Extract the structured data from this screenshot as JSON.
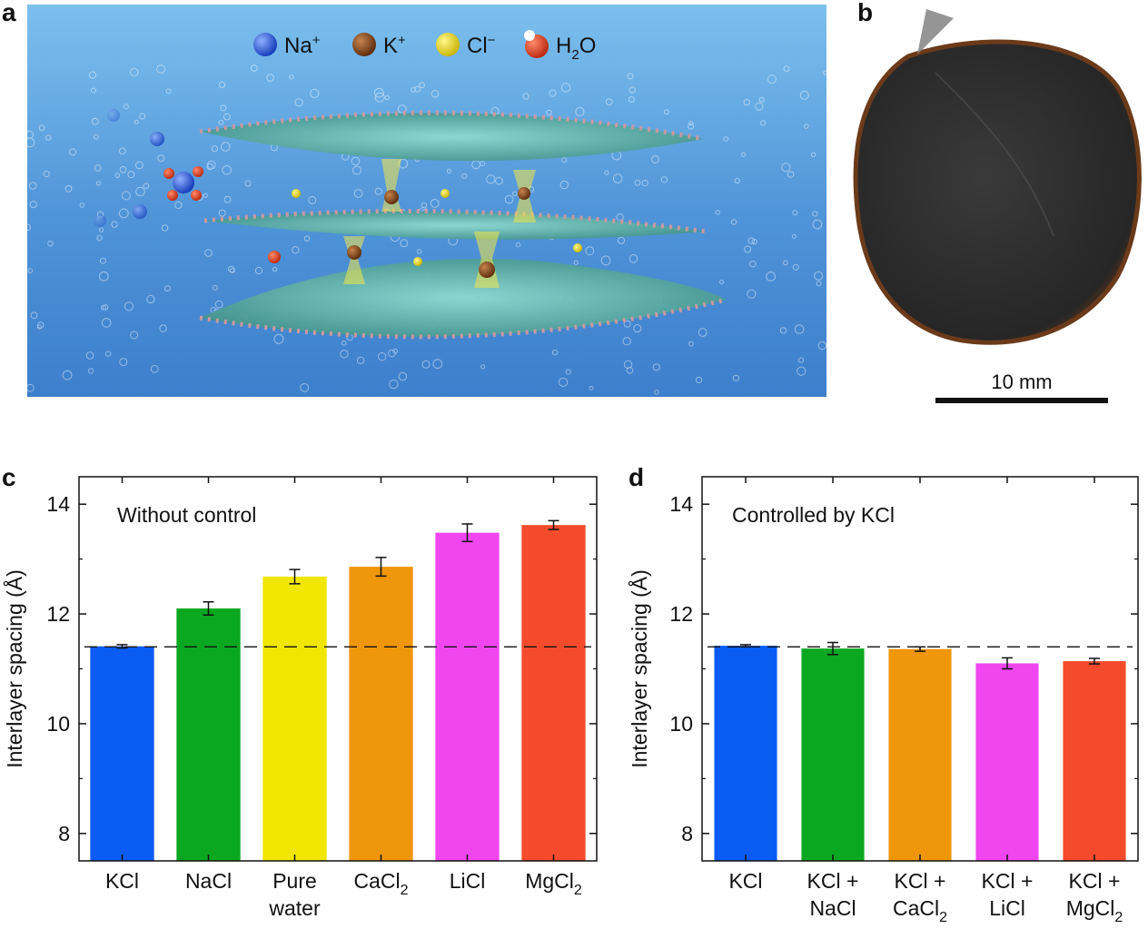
{
  "panel_a": {
    "letter": "a",
    "legend": [
      {
        "symbol": "Na",
        "charge": "+",
        "color": "#1f4fd6"
      },
      {
        "symbol": "K",
        "charge": "+",
        "color": "#7a3b12"
      },
      {
        "symbol": "Cl",
        "charge": "−",
        "color": "#e8d61a"
      },
      {
        "symbol": "H",
        "sub": "2",
        "rest": "O",
        "color": "#d9361c"
      }
    ]
  },
  "panel_b": {
    "letter": "b",
    "scale_label": "10 mm"
  },
  "chart_data": [
    {
      "type": "bar",
      "panel_letter": "c",
      "annotation": "Without control",
      "ylabel": "Interlayer spacing (Å)",
      "ylim": [
        7.5,
        14.5
      ],
      "yticks": [
        8,
        10,
        12,
        14
      ],
      "reference_line": 11.4,
      "categories": [
        {
          "lines": [
            "KCl"
          ]
        },
        {
          "lines": [
            "NaCl"
          ]
        },
        {
          "lines": [
            "Pure",
            "water"
          ]
        },
        {
          "lines": [
            "CaCl|2"
          ]
        },
        {
          "lines": [
            "LiCl"
          ]
        },
        {
          "lines": [
            "MgCl|2"
          ]
        }
      ],
      "values": [
        11.41,
        12.1,
        12.68,
        12.86,
        13.48,
        13.62
      ],
      "errors": [
        0.03,
        0.12,
        0.13,
        0.17,
        0.16,
        0.08
      ],
      "colors": [
        "#0a5cf5",
        "#0aa821",
        "#f0e600",
        "#f0960a",
        "#f046f0",
        "#f54b2d"
      ]
    },
    {
      "type": "bar",
      "panel_letter": "d",
      "annotation": "Controlled by KCl",
      "ylabel": "Interlayer spacing (Å)",
      "ylim": [
        7.5,
        14.5
      ],
      "yticks": [
        8,
        10,
        12,
        14
      ],
      "reference_line": 11.4,
      "categories": [
        {
          "lines": [
            "KCl"
          ]
        },
        {
          "lines": [
            "KCl +",
            "NaCl"
          ]
        },
        {
          "lines": [
            "KCl +",
            "CaCl|2"
          ]
        },
        {
          "lines": [
            "KCl +",
            "LiCl"
          ]
        },
        {
          "lines": [
            "KCl +",
            "MgCl|2"
          ]
        }
      ],
      "values": [
        11.42,
        11.37,
        11.36,
        11.1,
        11.14
      ],
      "errors": [
        0.02,
        0.11,
        0.04,
        0.1,
        0.05
      ],
      "colors": [
        "#0a5cf5",
        "#0aa821",
        "#f0960a",
        "#f046f0",
        "#f54b2d"
      ]
    }
  ]
}
